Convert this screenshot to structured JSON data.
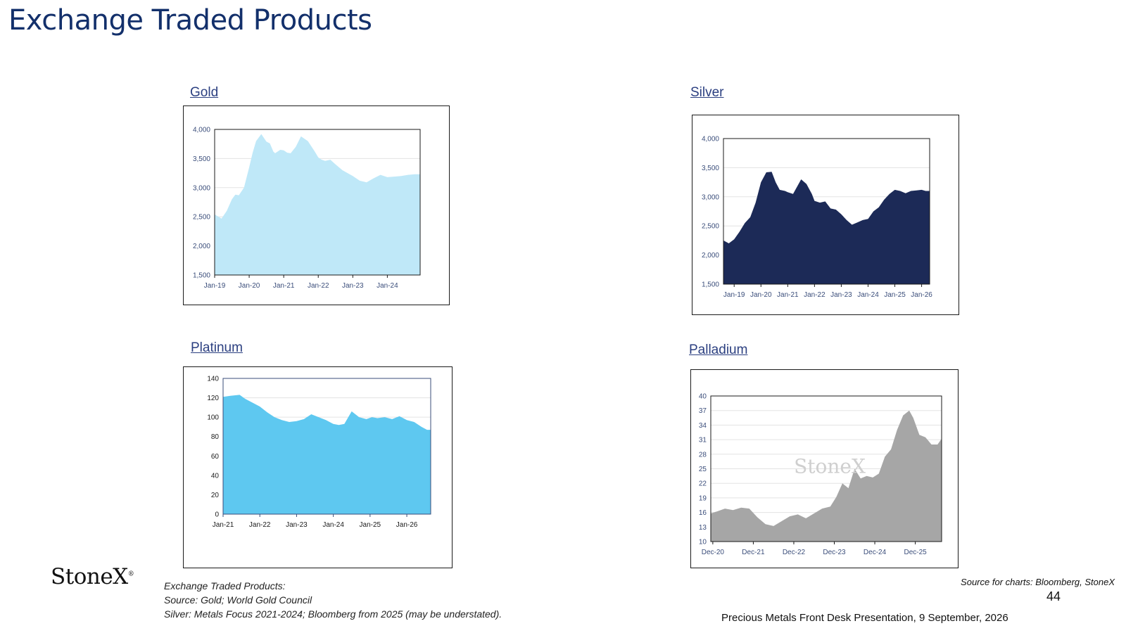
{
  "page": {
    "title": "Exchange Traded Products",
    "logo": "StoneX",
    "footnote_lines": [
      "Exchange Traded Products:",
      "Source:   Gold; World Gold Council",
      "Silver: Metals Focus 2021-2024; Bloomberg from 2025 (may be understated)."
    ],
    "source": "Source for charts: Bloomberg, StoneX",
    "page_number": "44",
    "presentation": "Precious Metals Front Desk Presentation, 9 September, 2026"
  },
  "colors": {
    "title": "#13306b",
    "gold_fill": "#bfe8f8",
    "silver_fill": "#1c2a57",
    "platinum_fill": "#5ec8f0",
    "palladium_fill": "#a6a6a6"
  },
  "chart_data": [
    {
      "id": "gold",
      "type": "area",
      "title": "Gold",
      "x_tick_labels": [
        "Jan-19",
        "Jan-20",
        "Jan-21",
        "Jan-22",
        "Jan-23",
        "Jan-24"
      ],
      "y_tick_labels": [
        "4,000",
        "3,500",
        "3,000",
        "2,500",
        "2,000",
        "1,500"
      ],
      "ylim": [
        1500,
        4000
      ],
      "xlim": [
        2019.0,
        2024.95
      ],
      "x": [
        2019.0,
        2019.2,
        2019.35,
        2019.5,
        2019.6,
        2019.7,
        2019.85,
        2020.0,
        2020.1,
        2020.2,
        2020.35,
        2020.5,
        2020.6,
        2020.7,
        2020.75,
        2020.9,
        2021.0,
        2021.1,
        2021.2,
        2021.35,
        2021.5,
        2021.7,
        2021.9,
        2022.0,
        2022.1,
        2022.2,
        2022.35,
        2022.5,
        2022.7,
        2022.85,
        2023.0,
        2023.2,
        2023.4,
        2023.6,
        2023.8,
        2024.0,
        2024.2,
        2024.4,
        2024.6,
        2024.8,
        2024.95
      ],
      "values": [
        2540,
        2470,
        2600,
        2800,
        2880,
        2870,
        3000,
        3350,
        3600,
        3800,
        3920,
        3790,
        3760,
        3620,
        3590,
        3650,
        3640,
        3600,
        3590,
        3700,
        3880,
        3800,
        3620,
        3520,
        3480,
        3460,
        3480,
        3400,
        3300,
        3250,
        3200,
        3120,
        3090,
        3160,
        3220,
        3180,
        3190,
        3200,
        3220,
        3230,
        3230
      ],
      "fill": "#bfe8f8"
    },
    {
      "id": "silver",
      "type": "area",
      "title": "Silver",
      "x_tick_labels": [
        "Jan-19",
        "Jan-20",
        "Jan-21",
        "Jan-22",
        "Jan-23",
        "Jan-24",
        "Jan-25",
        "Jan-26"
      ],
      "y_tick_labels": [
        "4,000",
        "3,500",
        "3,000",
        "2,500",
        "2,000",
        "1,500"
      ],
      "ylim": [
        1500,
        4000
      ],
      "xlim": [
        2018.6,
        2026.3
      ],
      "x": [
        2018.6,
        2018.8,
        2019.0,
        2019.2,
        2019.4,
        2019.6,
        2019.8,
        2020.0,
        2020.2,
        2020.4,
        2020.55,
        2020.7,
        2020.9,
        2021.0,
        2021.2,
        2021.5,
        2021.7,
        2021.9,
        2022.0,
        2022.2,
        2022.4,
        2022.6,
        2022.8,
        2023.0,
        2023.2,
        2023.4,
        2023.6,
        2023.8,
        2024.0,
        2024.2,
        2024.4,
        2024.6,
        2024.8,
        2025.0,
        2025.2,
        2025.4,
        2025.6,
        2025.8,
        2026.0,
        2026.15,
        2026.3
      ],
      "values": [
        2250,
        2200,
        2270,
        2400,
        2550,
        2650,
        2900,
        3250,
        3420,
        3430,
        3250,
        3120,
        3100,
        3080,
        3050,
        3300,
        3220,
        3050,
        2930,
        2900,
        2920,
        2800,
        2780,
        2700,
        2600,
        2520,
        2560,
        2600,
        2620,
        2750,
        2820,
        2950,
        3050,
        3120,
        3100,
        3060,
        3100,
        3110,
        3120,
        3100,
        3100
      ],
      "fill": "#1c2a57"
    },
    {
      "id": "platinum",
      "type": "area",
      "title": "Platinum",
      "x_tick_labels": [
        "Jan-21",
        "Jan-22",
        "Jan-23",
        "Jan-24",
        "Jan-25",
        "Jan-26"
      ],
      "y_tick_labels": [
        "140",
        "120",
        "100",
        "80",
        "60",
        "40",
        "20",
        "0"
      ],
      "ylim": [
        0,
        140
      ],
      "xlim": [
        2021.0,
        2026.65
      ],
      "x": [
        2021.0,
        2021.2,
        2021.45,
        2021.6,
        2021.8,
        2022.0,
        2022.2,
        2022.4,
        2022.6,
        2022.8,
        2023.0,
        2023.2,
        2023.4,
        2023.6,
        2023.8,
        2024.0,
        2024.15,
        2024.3,
        2024.5,
        2024.7,
        2024.9,
        2025.05,
        2025.2,
        2025.4,
        2025.6,
        2025.8,
        2026.0,
        2026.2,
        2026.4,
        2026.55,
        2026.65
      ],
      "values": [
        121,
        122,
        123,
        119,
        115,
        111,
        105,
        100,
        97,
        95,
        96,
        98,
        103,
        100,
        97,
        93,
        92,
        93,
        106,
        100,
        98,
        100,
        99,
        100,
        98,
        101,
        97,
        95,
        90,
        87,
        87
      ],
      "fill": "#5ec8f0"
    },
    {
      "id": "palladium",
      "type": "area",
      "title": "Palladium",
      "x_tick_labels": [
        "Dec-20",
        "Dec-21",
        "Dec-22",
        "Dec-23",
        "Dec-24",
        "Dec-25"
      ],
      "y_tick_labels": [
        "40",
        "37",
        "34",
        "31",
        "28",
        "25",
        "22",
        "19",
        "16",
        "13",
        "10"
      ],
      "ylim": [
        10,
        40
      ],
      "xlim": [
        2020.95,
        2026.65
      ],
      "x": [
        2020.95,
        2021.1,
        2021.3,
        2021.5,
        2021.7,
        2021.9,
        2022.1,
        2022.3,
        2022.5,
        2022.7,
        2022.9,
        2023.1,
        2023.3,
        2023.5,
        2023.7,
        2023.9,
        2024.05,
        2024.2,
        2024.35,
        2024.5,
        2024.65,
        2024.8,
        2024.95,
        2025.1,
        2025.25,
        2025.4,
        2025.55,
        2025.7,
        2025.85,
        2025.95,
        2026.1,
        2026.25,
        2026.4,
        2026.55,
        2026.65
      ],
      "values": [
        15.8,
        16.2,
        16.8,
        16.5,
        17.0,
        16.8,
        15.0,
        13.6,
        13.2,
        14.2,
        15.2,
        15.6,
        14.8,
        15.8,
        16.8,
        17.2,
        19.2,
        22.0,
        21.0,
        25.0,
        23.0,
        23.5,
        23.2,
        24.0,
        27.5,
        29.0,
        33.0,
        36.0,
        37.0,
        35.5,
        32.0,
        31.5,
        30.0,
        30.0,
        31.2
      ],
      "fill": "#a6a6a6",
      "watermark": "StoneX"
    }
  ]
}
